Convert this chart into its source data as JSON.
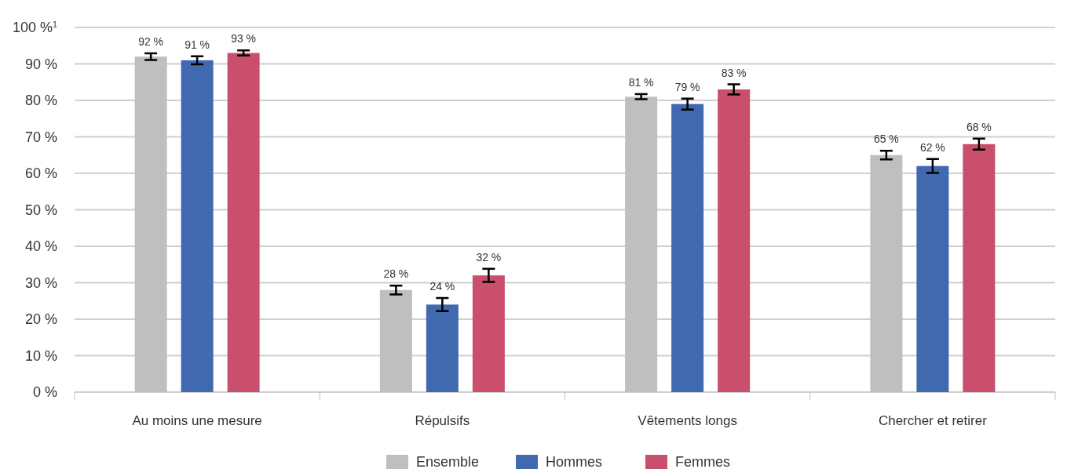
{
  "chart_data": {
    "type": "bar",
    "categories": [
      "Au moins une mesure",
      "Répulsifs",
      "Vêtements longs",
      "Chercher et retirer"
    ],
    "series": [
      {
        "name": "Ensemble",
        "color": "#bfbfbf",
        "values": [
          92,
          28,
          81,
          65
        ],
        "value_labels": [
          "92 %",
          "28 %",
          "81 %",
          "65 %"
        ],
        "errors": [
          0.9,
          1.2,
          0.7,
          1.2
        ]
      },
      {
        "name": "Hommes",
        "color": "#4169b0",
        "values": [
          91,
          24,
          79,
          62
        ],
        "value_labels": [
          "91 %",
          "24 %",
          "79 %",
          "62 %"
        ],
        "errors": [
          1.1,
          1.8,
          1.5,
          1.9
        ]
      },
      {
        "name": "Femmes",
        "color": "#c94f6d",
        "values": [
          93,
          32,
          83,
          68
        ],
        "value_labels": [
          "93 %",
          "32 %",
          "83 %",
          "68 %"
        ],
        "errors": [
          0.7,
          1.8,
          1.4,
          1.5
        ]
      }
    ],
    "ylim": [
      0,
      100
    ],
    "yticks": [
      {
        "value": 0,
        "label": "0 %"
      },
      {
        "value": 10,
        "label": "10 %"
      },
      {
        "value": 20,
        "label": "20 %"
      },
      {
        "value": 30,
        "label": "30 %"
      },
      {
        "value": 40,
        "label": "40 %"
      },
      {
        "value": 50,
        "label": "50 %"
      },
      {
        "value": 60,
        "label": "60 %"
      },
      {
        "value": 70,
        "label": "70 %"
      },
      {
        "value": 80,
        "label": "80 %"
      },
      {
        "value": 90,
        "label": "90 %"
      },
      {
        "value": 100,
        "label": "100 %$^{1}$"
      }
    ],
    "grid": "y",
    "legend": "bottom"
  }
}
